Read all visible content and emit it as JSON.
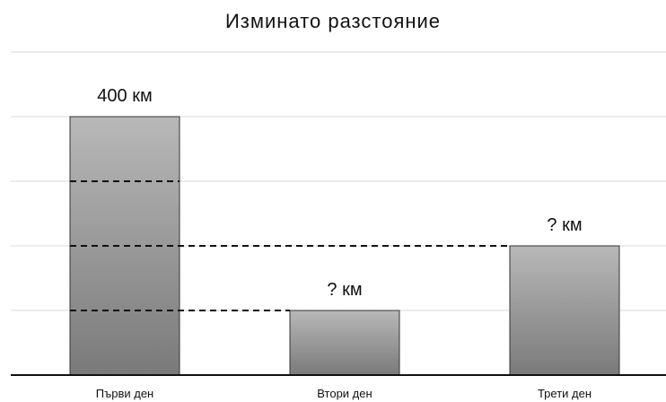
{
  "chart_data": {
    "type": "bar",
    "title": "Изминато разстояние",
    "categories": [
      "Първи ден",
      "Втори ден",
      "Трети ден"
    ],
    "values": [
      400,
      100,
      200
    ],
    "data_labels": [
      "400 км",
      "? км",
      "? км"
    ],
    "ylim": [
      0,
      500
    ],
    "grid": true,
    "legend": "none",
    "bar_fill_top": "#b8b8b8",
    "bar_fill_bottom": "#7a7a7a",
    "bar_stroke": "#333333",
    "grid_color": "#d9d9d9",
    "dashed_guides": [
      {
        "from_category": 0,
        "to_category": 0,
        "y": 300
      },
      {
        "from_category": 0,
        "to_category": 2,
        "y": 200
      },
      {
        "from_category": 0,
        "to_category": 1,
        "y": 100
      }
    ]
  }
}
